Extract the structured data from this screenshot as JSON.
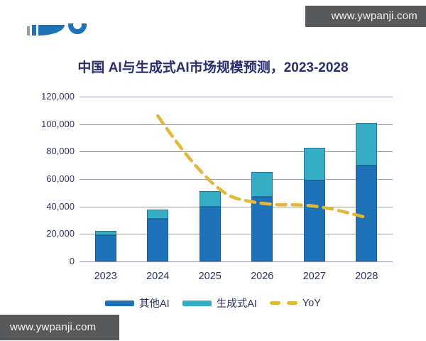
{
  "watermarks": {
    "top": "www.ywpanji.com",
    "bottom": "www.ywpanji.com"
  },
  "title": "中国 AI与生成式AI市场规模预测，2023-2028",
  "chart_data": {
    "type": "bar",
    "variant": "stacked-bars-with-dashed-line",
    "title": "中国 AI与生成式AI市场规模预测，2023-2028",
    "categories": [
      "2023",
      "2024",
      "2025",
      "2026",
      "2027",
      "2028"
    ],
    "series": [
      {
        "name": "其他AI",
        "type": "bar",
        "stack": true,
        "color": "#1e73b8",
        "values": [
          19000,
          31000,
          40000,
          47000,
          59000,
          70000
        ]
      },
      {
        "name": "生成式AI",
        "type": "bar",
        "stack": true,
        "color": "#35adc5",
        "values": [
          3000,
          7000,
          11000,
          18000,
          24000,
          31000
        ]
      },
      {
        "name": "YoY",
        "type": "line",
        "style": "dashed",
        "color": "#e3b83a",
        "axis": "hidden-secondary",
        "values_on_left_axis_scale": [
          null,
          106000,
          51000,
          41000,
          41500,
          32000
        ]
      }
    ],
    "stacked_totals": [
      22000,
      38000,
      51000,
      65000,
      83000,
      101000
    ],
    "ylim": [
      0,
      120000
    ],
    "ytick_step": 20000,
    "ytick_labels": [
      "0",
      "20,000",
      "40,000",
      "60,000",
      "80,000",
      "100,000",
      "120,000"
    ],
    "xlabel": "",
    "ylabel": "",
    "grid": "horizontal",
    "legend_position": "bottom"
  },
  "colors": {
    "title_text": "#2b2d70",
    "axis_text": "#30335f",
    "gridline": "#9a9cbe",
    "bar_other_ai": "#1e73b8",
    "bar_gen_ai": "#35adc5",
    "yoy_line": "#e3b83a",
    "watermark_bg": "#58595b",
    "watermark_text": "#f4f4f4",
    "logo_blue": "#1e73b8"
  }
}
